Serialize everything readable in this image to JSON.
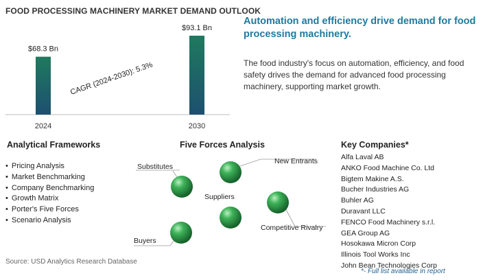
{
  "header": {
    "title": "FOOD PROCESSING MACHINERY MARKET DEMAND OUTLOOK"
  },
  "chart_data": {
    "type": "bar",
    "categories": [
      "2024",
      "2030"
    ],
    "values": [
      68.3,
      93.1
    ],
    "value_labels": [
      "$68.3 Bn",
      "$93.1 Bn"
    ],
    "annotation": "CAGR (2024-2030):  5.3%",
    "bar_color": "#1f6f6a"
  },
  "summary": {
    "headline": "Automation and efficiency drive demand for food processing machinery.",
    "description": "The food industry's focus on automation, efficiency, and food safety drives the demand for advanced food processing machinery, supporting market growth."
  },
  "frameworks": {
    "title": "Analytical Frameworks",
    "items": [
      "Pricing Analysis",
      "Market Benchmarking",
      "Company Benchmarking",
      "Growth Matrix",
      "Porter's Five Forces",
      "Scenario Analysis"
    ]
  },
  "five_forces": {
    "title": "Five Forces Analysis",
    "labels": {
      "substitutes": "Substitutes",
      "new_entrants": "New Entrants",
      "suppliers": "Suppliers",
      "rivalry": "Competitive Rivalry",
      "buyers": "Buyers"
    },
    "sphere_color": "#2e9e4a"
  },
  "companies": {
    "title": "Key Companies*",
    "items": [
      "Alfa Laval AB",
      "ANKO Food Machine Co. Ltd",
      "Bigtem Makine A.S.",
      "Bucher Industries AG",
      "Buhler AG",
      "Duravant LLC",
      "FENCO Food Machinery s.r.l.",
      "GEA Group AG",
      "Hosokawa Micron Corp",
      "Illinois Tool Works Inc",
      "John Bean Technologies Corp"
    ],
    "note": "*- Full list available in report"
  },
  "footer": {
    "source": "Source: USD Analytics Research Database"
  }
}
